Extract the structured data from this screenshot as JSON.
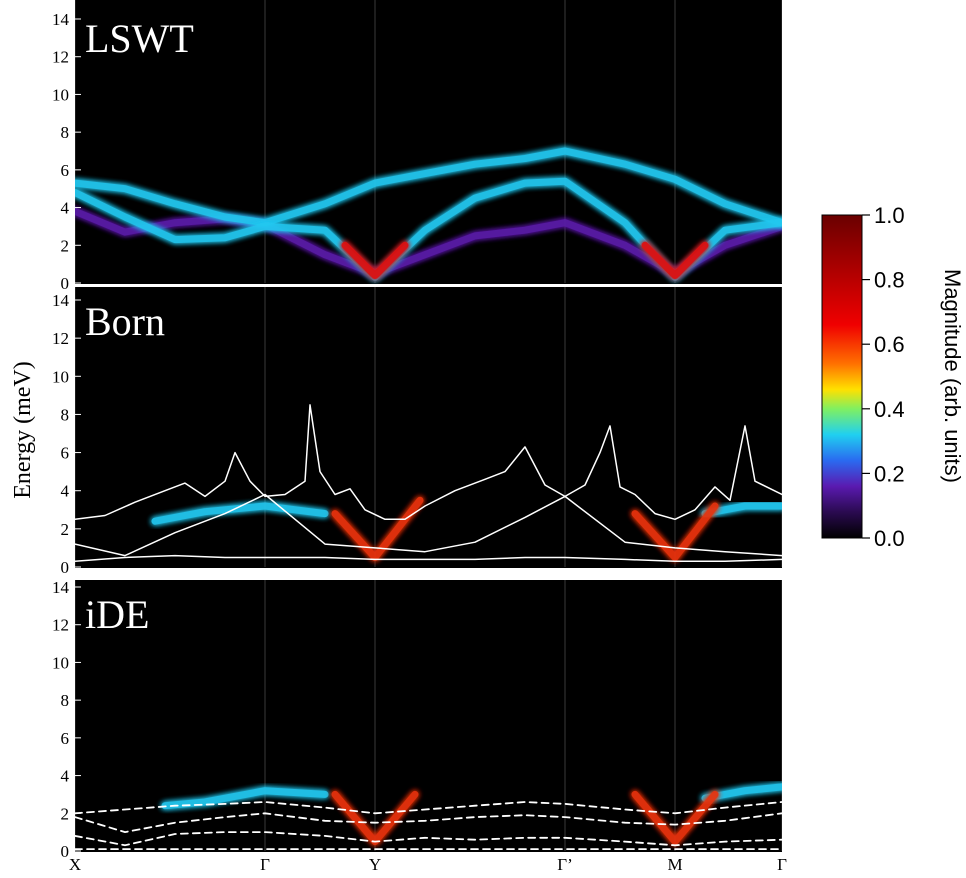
{
  "chart_data": {
    "type": "line",
    "ylabel": "Energy (meV)",
    "xlim": [
      0,
      7.07
    ],
    "xticks": [
      {
        "value": 0,
        "label": "X"
      },
      {
        "value": 1.9,
        "label": "Γ"
      },
      {
        "value": 3,
        "label": "Y"
      },
      {
        "value": 4.9,
        "label": "Γ’"
      },
      {
        "value": 6,
        "label": "M"
      },
      {
        "value": 7.07,
        "label": "Γ"
      }
    ],
    "colorbar": {
      "label": "Magnitude (arb. units)",
      "lim": [
        0,
        1
      ],
      "ticks": [
        {
          "value": 0,
          "label": "0.0"
        },
        0.2,
        0.4,
        0.6,
        0.8,
        {
          "value": 1,
          "label": "1.0"
        }
      ]
    },
    "panels": [
      {
        "title": "LSWT",
        "ylim": [
          0,
          14
        ],
        "yticks": [
          0,
          2,
          4,
          6,
          8,
          10,
          12,
          14
        ],
        "series": [
          {
            "style": "glow",
            "color": "#5a1aa8",
            "x": [
              0,
              0.5,
              1,
              1.5,
              1.9,
              2.5,
              3,
              3.5,
              4,
              4.5,
              4.9,
              5.5,
              6,
              6.5,
              7.07
            ],
            "values": [
              3.8,
              2.7,
              3.2,
              3.4,
              3.1,
              1.5,
              0.5,
              1.5,
              2.5,
              2.8,
              3.2,
              2.0,
              0.5,
              2.0,
              3.0
            ]
          },
          {
            "style": "glow",
            "color": "#22c8f0",
            "x": [
              0,
              0.5,
              1,
              1.5,
              1.9,
              2.5,
              3,
              3.5,
              4,
              4.5,
              4.9,
              5.5,
              6,
              6.5,
              7.07
            ],
            "values": [
              5.3,
              5,
              4.2,
              3.5,
              3.2,
              4.2,
              5.3,
              5.8,
              6.3,
              6.6,
              7.0,
              6.3,
              5.5,
              4.2,
              3.2
            ]
          },
          {
            "style": "glow",
            "color": "#22c8f0",
            "x": [
              0,
              0.5,
              1,
              1.5,
              1.9,
              2.5,
              3,
              3.5,
              4,
              4.5,
              4.9,
              5.5,
              6,
              6.5,
              7.07
            ],
            "values": [
              4.8,
              3.5,
              2.3,
              2.4,
              3.0,
              2.8,
              0.3,
              2.8,
              4.5,
              5.3,
              5.4,
              3.2,
              0.3,
              2.8,
              3.2
            ]
          },
          {
            "style": "glow",
            "color": "#ffb000",
            "x": [
              1.6,
              1.9,
              2.2
            ],
            "values": [
              3.2,
              3.2,
              3.2
            ]
          },
          {
            "style": "glow",
            "color": "#e01010",
            "x": [
              2.7,
              3,
              3.3
            ],
            "values": [
              2,
              0.4,
              2
            ]
          },
          {
            "style": "glow",
            "color": "#e01010",
            "x": [
              5.7,
              6,
              6.3
            ],
            "values": [
              2,
              0.4,
              2
            ]
          }
        ]
      },
      {
        "title": "Born",
        "ylim": [
          0,
          14
        ],
        "yticks": [
          0,
          2,
          4,
          6,
          8,
          10,
          12,
          14
        ],
        "series": [
          {
            "style": "glow",
            "color": "#22c8f0",
            "x": [
              0.8,
              1.3,
              1.9,
              2.5
            ],
            "values": [
              2.4,
              2.9,
              3.2,
              2.8
            ]
          },
          {
            "style": "glow",
            "color": "#22c8f0",
            "x": [
              6.3,
              6.7,
              7.07
            ],
            "values": [
              2.8,
              3.2,
              3.2
            ]
          },
          {
            "style": "glow",
            "color": "#e8300a",
            "x": [
              2.6,
              3,
              3.45
            ],
            "values": [
              2.8,
              0.5,
              3.5
            ]
          },
          {
            "style": "glow",
            "color": "#e8300a",
            "x": [
              5.6,
              6,
              6.4
            ],
            "values": [
              2.8,
              0.5,
              3.2
            ]
          },
          {
            "style": "solid",
            "color": "#ffffff",
            "x": [
              0,
              0.3,
              0.6,
              0.9,
              1.1,
              1.3,
              1.5,
              1.6,
              1.75,
              1.9,
              2.1,
              2.3,
              2.35,
              2.45,
              2.6,
              2.75,
              2.9,
              3.1,
              3.3,
              3.5,
              3.8,
              4.1,
              4.3,
              4.5,
              4.7,
              4.9,
              5.1,
              5.25,
              5.35,
              5.45,
              5.6,
              5.8,
              6,
              6.2,
              6.4,
              6.55,
              6.7,
              6.8,
              7.07
            ],
            "values": [
              2.5,
              2.7,
              3.4,
              4.0,
              4.4,
              3.7,
              4.5,
              6.0,
              4.5,
              3.7,
              3.8,
              4.5,
              8.5,
              5.0,
              3.8,
              4.1,
              3.0,
              2.5,
              2.5,
              3.2,
              4.0,
              4.6,
              5.0,
              6.3,
              4.3,
              3.7,
              4.3,
              6.0,
              7.4,
              4.2,
              3.8,
              2.8,
              2.5,
              3.0,
              4.2,
              3.5,
              7.4,
              4.5,
              3.8
            ]
          },
          {
            "style": "solid",
            "color": "#ffffff",
            "x": [
              0,
              0.5,
              1,
              1.5,
              1.9,
              2.5,
              3,
              3.5,
              4,
              4.5,
              4.9,
              5.5,
              6,
              6.5,
              7.07
            ],
            "values": [
              1.2,
              0.6,
              1.8,
              2.8,
              3.8,
              1.2,
              1.0,
              0.8,
              1.3,
              2.6,
              3.7,
              1.3,
              1.0,
              0.8,
              0.6
            ]
          },
          {
            "style": "solid",
            "color": "#ffffff",
            "x": [
              0,
              0.5,
              1,
              1.5,
              1.9,
              2.5,
              3,
              3.5,
              4,
              4.5,
              4.9,
              5.5,
              6,
              6.5,
              7.07
            ],
            "values": [
              0.3,
              0.5,
              0.6,
              0.5,
              0.5,
              0.5,
              0.4,
              0.4,
              0.4,
              0.5,
              0.5,
              0.4,
              0.3,
              0.3,
              0.4
            ]
          }
        ]
      },
      {
        "title": "iDE",
        "ylim": [
          0,
          14
        ],
        "yticks": [
          0,
          2,
          4,
          6,
          8,
          10,
          12,
          14
        ],
        "series": [
          {
            "style": "glow",
            "color": "#22c8f0",
            "x": [
              0.9,
              1.3,
              1.9,
              2.5
            ],
            "values": [
              2.4,
              2.6,
              3.2,
              3.0
            ]
          },
          {
            "style": "glow",
            "color": "#22c8f0",
            "x": [
              6.3,
              6.7,
              7.07
            ],
            "values": [
              2.8,
              3.2,
              3.4
            ]
          },
          {
            "style": "glow",
            "color": "#e8300a",
            "x": [
              2.6,
              3,
              3.4
            ],
            "values": [
              3,
              0.5,
              3
            ]
          },
          {
            "style": "glow",
            "color": "#e8300a",
            "x": [
              5.6,
              6,
              6.4
            ],
            "values": [
              3,
              0.5,
              3
            ]
          },
          {
            "style": "dashed",
            "color": "#ffffff",
            "x": [
              0,
              0.5,
              1,
              1.5,
              1.9,
              2.5,
              3,
              3.5,
              4,
              4.5,
              4.9,
              5.5,
              6,
              6.5,
              7.07
            ],
            "values": [
              2.0,
              2.2,
              2.4,
              2.5,
              2.6,
              2.3,
              2.0,
              2.2,
              2.4,
              2.6,
              2.5,
              2.2,
              2.0,
              2.3,
              2.6
            ]
          },
          {
            "style": "dashed",
            "color": "#ffffff",
            "x": [
              0,
              0.5,
              1,
              1.5,
              1.9,
              2.5,
              3,
              3.5,
              4,
              4.5,
              4.9,
              5.5,
              6,
              6.5,
              7.07
            ],
            "values": [
              1.8,
              1.0,
              1.5,
              1.8,
              2.0,
              1.6,
              1.5,
              1.6,
              1.8,
              1.9,
              1.8,
              1.5,
              1.4,
              1.6,
              2.0
            ]
          },
          {
            "style": "dashed",
            "color": "#ffffff",
            "x": [
              0,
              0.5,
              1,
              1.5,
              1.9,
              2.5,
              3,
              3.5,
              4,
              4.5,
              4.9,
              5.5,
              6,
              6.5,
              7.07
            ],
            "values": [
              0.8,
              0.3,
              0.9,
              1.0,
              1.0,
              0.8,
              0.5,
              0.7,
              0.6,
              0.7,
              0.7,
              0.5,
              0.3,
              0.5,
              0.6
            ]
          },
          {
            "style": "dashed",
            "color": "#ffffff",
            "x": [
              0,
              0.5,
              1,
              1.5,
              1.9,
              2.5,
              3,
              3.5,
              4,
              4.5,
              4.9,
              5.5,
              6,
              6.5,
              7.07
            ],
            "values": [
              0.1,
              0.1,
              0.1,
              0.1,
              0.1,
              0.1,
              0.1,
              0.1,
              0.1,
              0.1,
              0.1,
              0.1,
              0.1,
              0.1,
              0.1
            ]
          }
        ]
      }
    ]
  }
}
